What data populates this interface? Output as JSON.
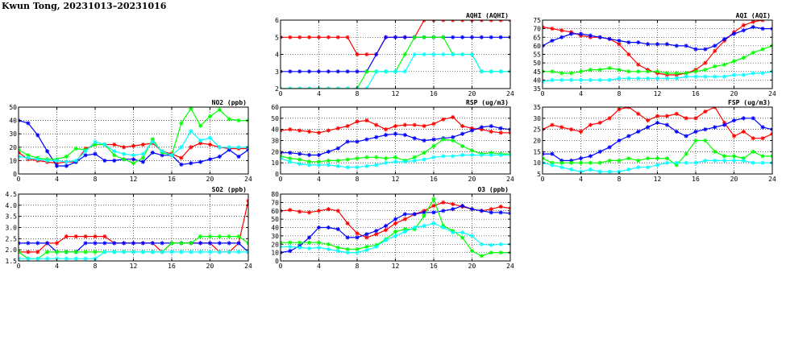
{
  "page_title": "Kwun Tong, 20231013–20231016",
  "series_colors": {
    "red": "#ff0000",
    "blue": "#0000ff",
    "green": "#00ff00",
    "cyan": "#00ffff"
  },
  "chart_data": [
    {
      "id": "aqhi",
      "type": "line",
      "title": "AQHI (AQHI)",
      "xlim": [
        0,
        24
      ],
      "ylim": [
        2,
        6
      ],
      "xticks": [
        0,
        4,
        8,
        12,
        16,
        20,
        24
      ],
      "yticks": [
        2,
        3,
        4,
        5,
        6
      ],
      "grid": true,
      "x_step": 1,
      "series": [
        {
          "color": "#ff0000",
          "values": [
            5,
            5,
            5,
            5,
            5,
            5,
            5,
            5,
            4,
            4,
            4,
            5,
            5,
            5,
            5,
            6,
            6,
            6,
            6,
            6,
            6,
            6,
            6,
            6,
            6
          ]
        },
        {
          "color": "#0000ff",
          "values": [
            3,
            3,
            3,
            3,
            3,
            3,
            3,
            3,
            3,
            3,
            4,
            5,
            5,
            5,
            5,
            5,
            5,
            5,
            5,
            5,
            5,
            5,
            5,
            5,
            5
          ]
        },
        {
          "color": "#00ff00",
          "values": [
            2,
            2,
            2,
            2,
            2,
            2,
            2,
            2,
            2,
            3,
            3,
            3,
            3,
            4,
            5,
            5,
            5,
            5,
            4,
            4,
            4,
            3,
            3,
            3,
            3
          ]
        },
        {
          "color": "#00ffff",
          "values": [
            2,
            2,
            2,
            2,
            2,
            2,
            2,
            2,
            2,
            2,
            3,
            3,
            3,
            3,
            4,
            4,
            4,
            4,
            4,
            4,
            4,
            3,
            3,
            3,
            3
          ]
        }
      ]
    },
    {
      "id": "aqi",
      "type": "line",
      "title": "AQI (AQI)",
      "xlim": [
        0,
        24
      ],
      "ylim": [
        35,
        75
      ],
      "xticks": [
        0,
        4,
        8,
        12,
        16,
        20,
        24
      ],
      "yticks": [
        35,
        40,
        45,
        50,
        55,
        60,
        65,
        70,
        75
      ],
      "grid": true,
      "x_step": 1,
      "series": [
        {
          "color": "#ff0000",
          "values": [
            71,
            70,
            69,
            68,
            66,
            65,
            65,
            64,
            61,
            55,
            49,
            46,
            44,
            43,
            43,
            44,
            46,
            50,
            57,
            63,
            68,
            72,
            74,
            75,
            76
          ]
        },
        {
          "color": "#0000ff",
          "values": [
            60,
            63,
            65,
            67,
            67,
            66,
            65,
            64,
            63,
            62,
            62,
            61,
            61,
            61,
            60,
            60,
            58,
            58,
            60,
            64,
            67,
            69,
            71,
            70,
            70
          ]
        },
        {
          "color": "#00ff00",
          "values": [
            45,
            45,
            44,
            44,
            45,
            46,
            46,
            47,
            46,
            45,
            45,
            45,
            45,
            44,
            44,
            44,
            45,
            46,
            48,
            49,
            51,
            53,
            56,
            58,
            60
          ]
        },
        {
          "color": "#00ffff",
          "values": [
            39,
            40,
            40,
            40,
            40,
            40,
            40,
            40,
            41,
            41,
            41,
            41,
            41,
            41,
            41,
            42,
            42,
            42,
            42,
            42,
            43,
            43,
            44,
            44,
            45
          ]
        }
      ]
    },
    {
      "id": "no2",
      "type": "line",
      "title": "NO2 (ppb)",
      "xlim": [
        0,
        24
      ],
      "ylim": [
        0,
        50
      ],
      "xticks": [
        0,
        4,
        8,
        12,
        16,
        20,
        24
      ],
      "yticks": [
        0,
        10,
        20,
        30,
        40,
        50
      ],
      "grid": true,
      "x_step": 1,
      "series": [
        {
          "color": "#ff0000",
          "values": [
            16,
            11,
            10,
            9,
            8,
            9,
            9,
            19,
            22,
            22,
            22,
            20,
            21,
            22,
            23,
            17,
            15,
            12,
            20,
            23,
            22,
            20,
            19,
            19,
            19
          ]
        },
        {
          "color": "#0000ff",
          "values": [
            40,
            38,
            29,
            17,
            6,
            6,
            9,
            14,
            15,
            10,
            10,
            11,
            11,
            9,
            16,
            14,
            14,
            7,
            8,
            9,
            11,
            13,
            18,
            13,
            18
          ]
        },
        {
          "color": "#00ff00",
          "values": [
            18,
            14,
            12,
            11,
            11,
            13,
            19,
            18,
            22,
            22,
            14,
            11,
            8,
            12,
            26,
            16,
            14,
            38,
            49,
            36,
            43,
            48,
            41,
            40,
            40
          ]
        },
        {
          "color": "#00ffff",
          "values": [
            13,
            12,
            11,
            10,
            10,
            9,
            10,
            17,
            24,
            22,
            17,
            15,
            14,
            15,
            24,
            17,
            14,
            20,
            32,
            25,
            27,
            20,
            20,
            20,
            20
          ]
        }
      ]
    },
    {
      "id": "rsp",
      "type": "line",
      "title": "RSP (ug/m3)",
      "xlim": [
        0,
        24
      ],
      "ylim": [
        0,
        60
      ],
      "xticks": [
        0,
        4,
        8,
        12,
        16,
        20,
        24
      ],
      "yticks": [
        0,
        10,
        20,
        30,
        40,
        50,
        60
      ],
      "grid": true,
      "x_step": 1,
      "series": [
        {
          "color": "#ff0000",
          "values": [
            39,
            40,
            39,
            38,
            37,
            39,
            41,
            43,
            47,
            48,
            44,
            40,
            43,
            44,
            44,
            43,
            45,
            49,
            51,
            43,
            41,
            40,
            38,
            37,
            37
          ]
        },
        {
          "color": "#0000ff",
          "values": [
            19,
            19,
            18,
            17,
            17,
            20,
            23,
            29,
            29,
            31,
            33,
            35,
            36,
            35,
            32,
            30,
            31,
            32,
            33,
            36,
            39,
            42,
            43,
            41,
            40
          ]
        },
        {
          "color": "#00ff00",
          "values": [
            16,
            14,
            13,
            11,
            11,
            12,
            12,
            13,
            14,
            15,
            15,
            14,
            15,
            12,
            15,
            19,
            25,
            31,
            30,
            25,
            21,
            18,
            19,
            18,
            18
          ]
        },
        {
          "color": "#00ffff",
          "values": [
            14,
            11,
            9,
            8,
            8,
            8,
            7,
            6,
            6,
            7,
            8,
            10,
            11,
            11,
            12,
            13,
            15,
            16,
            16,
            17,
            17,
            17,
            17,
            17,
            17
          ]
        }
      ]
    },
    {
      "id": "fsp",
      "type": "line",
      "title": "FSP (ug/m3)",
      "xlim": [
        0,
        24
      ],
      "ylim": [
        5,
        35
      ],
      "xticks": [
        0,
        4,
        8,
        12,
        16,
        20,
        24
      ],
      "yticks": [
        5,
        10,
        15,
        20,
        25,
        30,
        35
      ],
      "grid": true,
      "x_step": 1,
      "series": [
        {
          "color": "#ff0000",
          "values": [
            25,
            27,
            26,
            25,
            24,
            27,
            28,
            30,
            34,
            35,
            32,
            29,
            31,
            31,
            32,
            30,
            30,
            33,
            35,
            28,
            22,
            24,
            21,
            21,
            23
          ]
        },
        {
          "color": "#0000ff",
          "values": [
            14,
            14,
            11,
            11,
            12,
            13,
            15,
            17,
            20,
            22,
            24,
            26,
            28,
            27,
            24,
            22,
            24,
            25,
            26,
            27,
            29,
            30,
            30,
            26,
            25
          ]
        },
        {
          "color": "#00ff00",
          "values": [
            12,
            10,
            10,
            10,
            10,
            10,
            10,
            11,
            11,
            12,
            11,
            12,
            12,
            12,
            9,
            14,
            20,
            20,
            15,
            13,
            13,
            12,
            15,
            13,
            13
          ]
        },
        {
          "color": "#00ffff",
          "values": [
            10,
            9,
            8,
            7,
            6,
            7,
            6,
            6,
            6,
            7,
            8,
            8,
            9,
            10,
            10,
            10,
            10,
            11,
            11,
            11,
            11,
            11,
            10,
            10,
            10
          ]
        }
      ]
    },
    {
      "id": "so2",
      "type": "line",
      "title": "SO2 (ppb)",
      "xlim": [
        0,
        24
      ],
      "ylim": [
        1.5,
        4.5
      ],
      "xticks": [
        0,
        4,
        8,
        12,
        16,
        20,
        24
      ],
      "yticks": [
        1.5,
        2.0,
        2.5,
        3.0,
        3.5,
        4.0,
        4.5
      ],
      "grid": true,
      "x_step": 1,
      "series": [
        {
          "color": "#ff0000",
          "values": [
            1.9,
            1.9,
            1.9,
            2.3,
            2.3,
            2.6,
            2.6,
            2.6,
            2.6,
            2.6,
            2.3,
            2.3,
            2.3,
            2.3,
            2.3,
            1.9,
            2.3,
            2.3,
            2.3,
            2.3,
            2.3,
            1.9,
            1.9,
            2.3,
            4.2
          ]
        },
        {
          "color": "#0000ff",
          "values": [
            2.3,
            2.3,
            2.3,
            2.3,
            1.9,
            1.9,
            1.9,
            2.3,
            2.3,
            2.3,
            2.3,
            2.3,
            2.3,
            2.3,
            2.3,
            2.3,
            2.3,
            2.3,
            2.3,
            2.3,
            2.3,
            2.3,
            2.3,
            2.3,
            1.9
          ]
        },
        {
          "color": "#00ff00",
          "values": [
            1.9,
            1.6,
            1.6,
            1.9,
            1.9,
            1.9,
            1.9,
            1.9,
            1.9,
            1.9,
            1.9,
            1.9,
            1.9,
            1.9,
            1.9,
            1.9,
            2.3,
            2.3,
            2.3,
            2.6,
            2.6,
            2.6,
            2.6,
            2.6,
            2.3
          ]
        },
        {
          "color": "#00ffff",
          "values": [
            1.6,
            1.6,
            1.6,
            1.6,
            1.6,
            1.6,
            1.6,
            1.6,
            1.6,
            1.9,
            1.9,
            1.9,
            1.9,
            1.9,
            1.9,
            1.9,
            1.9,
            1.9,
            1.9,
            1.9,
            1.9,
            1.9,
            1.9,
            1.9,
            1.9
          ]
        }
      ]
    },
    {
      "id": "o3",
      "type": "line",
      "title": "O3 (ppb)",
      "xlim": [
        0,
        24
      ],
      "ylim": [
        0,
        80
      ],
      "xticks": [
        0,
        4,
        8,
        12,
        16,
        20,
        24
      ],
      "yticks": [
        0,
        10,
        20,
        30,
        40,
        50,
        60,
        70,
        80
      ],
      "grid": true,
      "x_step": 1,
      "series": [
        {
          "color": "#ff0000",
          "values": [
            60,
            61,
            59,
            58,
            60,
            62,
            60,
            45,
            33,
            28,
            32,
            37,
            45,
            50,
            56,
            60,
            66,
            70,
            68,
            65,
            62,
            60,
            62,
            65,
            63
          ]
        },
        {
          "color": "#0000ff",
          "values": [
            10,
            12,
            18,
            28,
            40,
            40,
            38,
            28,
            28,
            32,
            36,
            42,
            50,
            56,
            56,
            58,
            58,
            60,
            62,
            66,
            62,
            60,
            58,
            58,
            57
          ]
        },
        {
          "color": "#00ff00",
          "values": [
            22,
            22,
            22,
            22,
            22,
            20,
            16,
            14,
            14,
            17,
            19,
            26,
            35,
            38,
            38,
            54,
            74,
            42,
            36,
            28,
            12,
            6,
            10,
            10,
            10
          ]
        },
        {
          "color": "#00ffff",
          "values": [
            17,
            17,
            16,
            15,
            16,
            14,
            12,
            10,
            10,
            13,
            17,
            25,
            30,
            35,
            40,
            42,
            45,
            40,
            34,
            34,
            30,
            20,
            19,
            20,
            20
          ]
        }
      ]
    }
  ]
}
